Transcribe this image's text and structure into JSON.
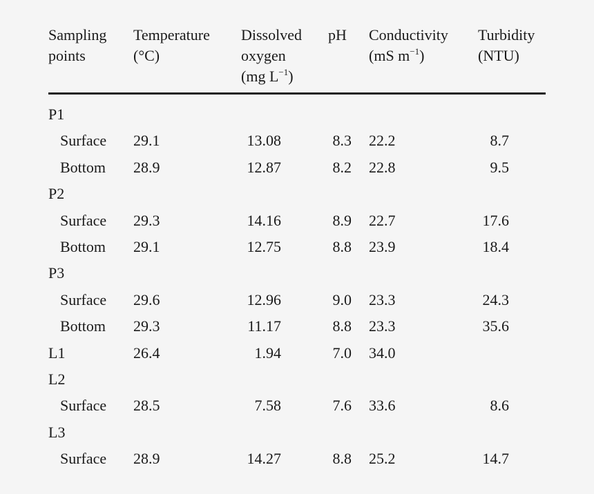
{
  "table": {
    "headers": {
      "sampling": [
        "Sampling",
        "points"
      ],
      "temperature": [
        "Temperature",
        "(°C)"
      ],
      "dissolved": [
        "Dissolved",
        "oxygen",
        "(mg L",
        "−1",
        ")"
      ],
      "ph": [
        "pH"
      ],
      "conductivity": [
        "Conductivity",
        "(mS m",
        "−1",
        ")"
      ],
      "turbidity": [
        "Turbidity",
        "(NTU)"
      ]
    },
    "rows": [
      {
        "point": "P1",
        "sub": false,
        "temperature": "",
        "oxygen": "",
        "ph": "",
        "conductivity": "",
        "turbidity": ""
      },
      {
        "point": "Surface",
        "sub": true,
        "temperature": "29.1",
        "oxygen": "13.08",
        "ph": "8.3",
        "conductivity": "22.2",
        "turbidity": "8.7"
      },
      {
        "point": "Bottom",
        "sub": true,
        "temperature": "28.9",
        "oxygen": "12.87",
        "ph": "8.2",
        "conductivity": "22.8",
        "turbidity": "9.5"
      },
      {
        "point": "P2",
        "sub": false,
        "temperature": "",
        "oxygen": "",
        "ph": "",
        "conductivity": "",
        "turbidity": ""
      },
      {
        "point": "Surface",
        "sub": true,
        "temperature": "29.3",
        "oxygen": "14.16",
        "ph": "8.9",
        "conductivity": "22.7",
        "turbidity": "17.6"
      },
      {
        "point": "Bottom",
        "sub": true,
        "temperature": "29.1",
        "oxygen": "12.75",
        "ph": "8.8",
        "conductivity": "23.9",
        "turbidity": "18.4"
      },
      {
        "point": "P3",
        "sub": false,
        "temperature": "",
        "oxygen": "",
        "ph": "",
        "conductivity": "",
        "turbidity": ""
      },
      {
        "point": "Surface",
        "sub": true,
        "temperature": "29.6",
        "oxygen": "12.96",
        "ph": "9.0",
        "conductivity": "23.3",
        "turbidity": "24.3"
      },
      {
        "point": "Bottom",
        "sub": true,
        "temperature": "29.3",
        "oxygen": "11.17",
        "ph": "8.8",
        "conductivity": "23.3",
        "turbidity": "35.6"
      },
      {
        "point": "L1",
        "sub": false,
        "temperature": "26.4",
        "oxygen": "1.94",
        "ph": "7.0",
        "conductivity": "34.0",
        "turbidity": ""
      },
      {
        "point": "L2",
        "sub": false,
        "temperature": "",
        "oxygen": "",
        "ph": "",
        "conductivity": "",
        "turbidity": ""
      },
      {
        "point": "Surface",
        "sub": true,
        "temperature": "28.5",
        "oxygen": "7.58",
        "ph": "7.6",
        "conductivity": "33.6",
        "turbidity": "8.6"
      },
      {
        "point": "L3",
        "sub": false,
        "temperature": "",
        "oxygen": "",
        "ph": "",
        "conductivity": "",
        "turbidity": ""
      },
      {
        "point": "Surface",
        "sub": true,
        "temperature": "28.9",
        "oxygen": "14.27",
        "ph": "8.8",
        "conductivity": "25.2",
        "turbidity": "14.7"
      }
    ]
  }
}
